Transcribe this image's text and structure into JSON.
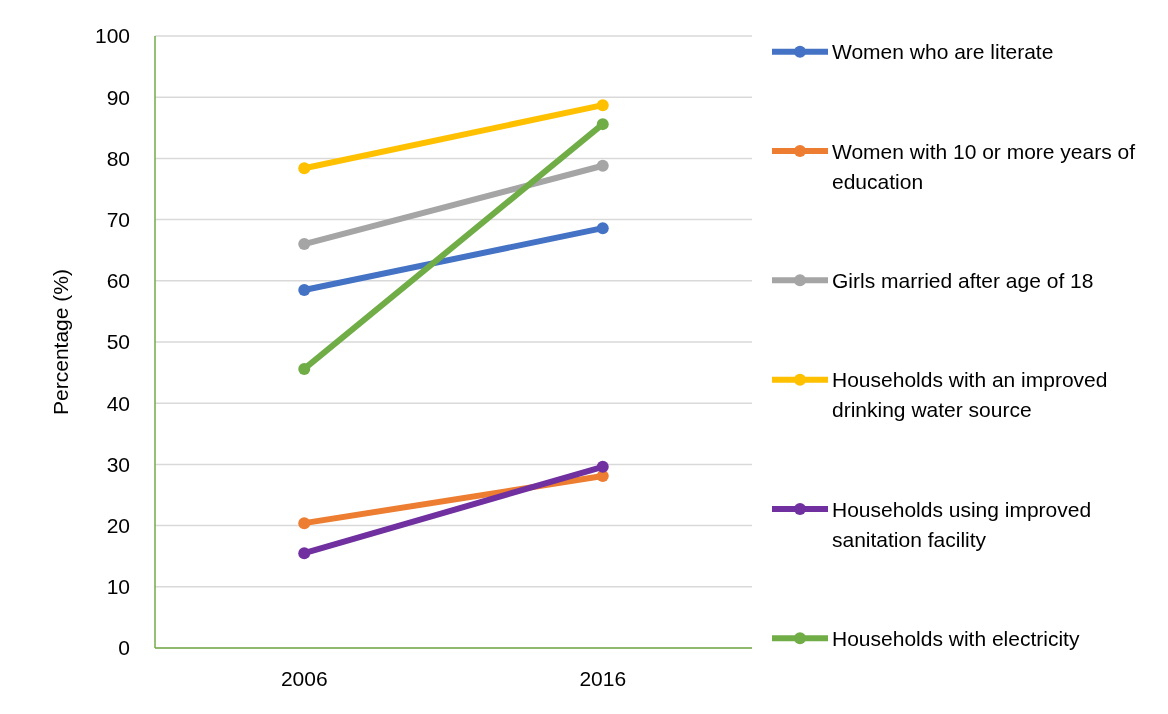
{
  "chart_data": {
    "type": "line",
    "ylabel": "Percentage (%)",
    "categories": [
      "2006",
      "2016"
    ],
    "series": [
      {
        "name": "Women who are literate",
        "color": "#4472c4",
        "values": [
          58.5,
          68.6
        ]
      },
      {
        "name": "Women with 10 or more years of education",
        "color": "#ed7d31",
        "values": [
          20.4,
          28.1
        ]
      },
      {
        "name": "Girls married after age of 18",
        "color": "#a5a5a5",
        "values": [
          66.0,
          78.8
        ]
      },
      {
        "name": "Households with an improved drinking water source",
        "color": "#ffc000",
        "values": [
          78.4,
          88.7
        ]
      },
      {
        "name": "Households using improved sanitation facility",
        "color": "#7030a0",
        "values": [
          15.5,
          29.6
        ]
      },
      {
        "name": "Households with electricity",
        "color": "#70ad47",
        "values": [
          45.6,
          85.6
        ]
      }
    ],
    "ylim": [
      0,
      100
    ],
    "yticks": [
      0,
      10,
      20,
      30,
      40,
      50,
      60,
      70,
      80,
      90,
      100
    ],
    "grid": "y",
    "legend": "right",
    "marker": "circle",
    "line_style": "solid"
  }
}
